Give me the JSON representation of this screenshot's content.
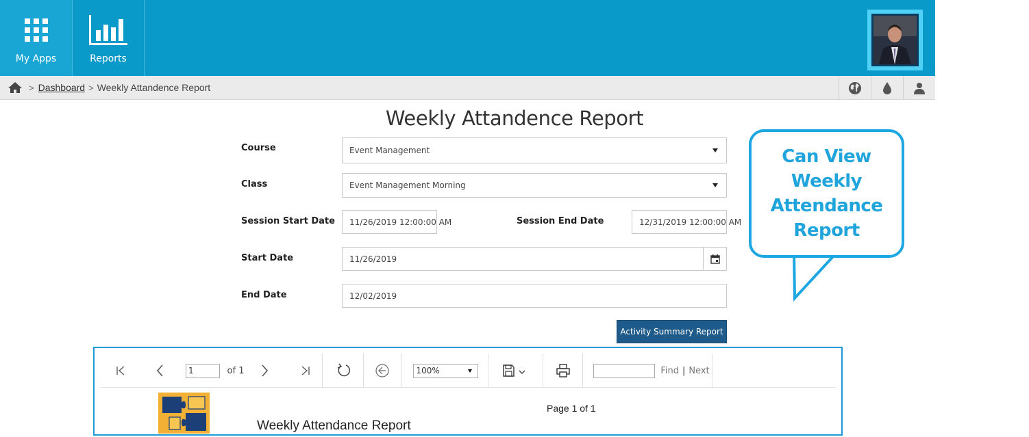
{
  "nav": {
    "apps_label": "My Apps",
    "reports_label": "Reports"
  },
  "breadcrumb": {
    "sep1": ">",
    "dashboard": "Dashboard",
    "sep2": ">",
    "current": "Weekly Attandence Report"
  },
  "page": {
    "title": "Weekly Attandence Report"
  },
  "form": {
    "course_label": "Course",
    "course_value": "Event Management",
    "class_label": "Class",
    "class_value": "Event Management Morning",
    "session_start_label": "Session Start Date",
    "session_start_value": "11/26/2019 12:00:00 AM",
    "session_end_label": "Session End Date",
    "session_end_value": "12/31/2019 12:00:00 AM",
    "start_date_label": "Start Date",
    "start_date_value": "11/26/2019",
    "end_date_label": "End Date",
    "end_date_value": "12/02/2019",
    "submit_label": "Activity Summary Report"
  },
  "callout": {
    "text": "Can View Weekly Attendance Report"
  },
  "viewer": {
    "page_number": "1",
    "of_label": "of 1",
    "zoom": "100%",
    "find_label": "Find",
    "find_sep": "|",
    "next_label": "Next",
    "page_info": "Page 1 of 1",
    "report_title": "Weekly Attendance Report"
  },
  "colors": {
    "topbar": "#0a9ac9",
    "accent": "#1ca7e2",
    "primary_button": "#1f5b8a"
  },
  "icons": [
    "grid-icon",
    "bar-chart-icon",
    "home-icon",
    "globe-icon",
    "drop-icon",
    "user-icon",
    "first-page-icon",
    "prev-page-icon",
    "next-page-icon",
    "last-page-icon",
    "refresh-icon",
    "back-icon",
    "save-icon",
    "print-icon",
    "calendar-icon"
  ]
}
